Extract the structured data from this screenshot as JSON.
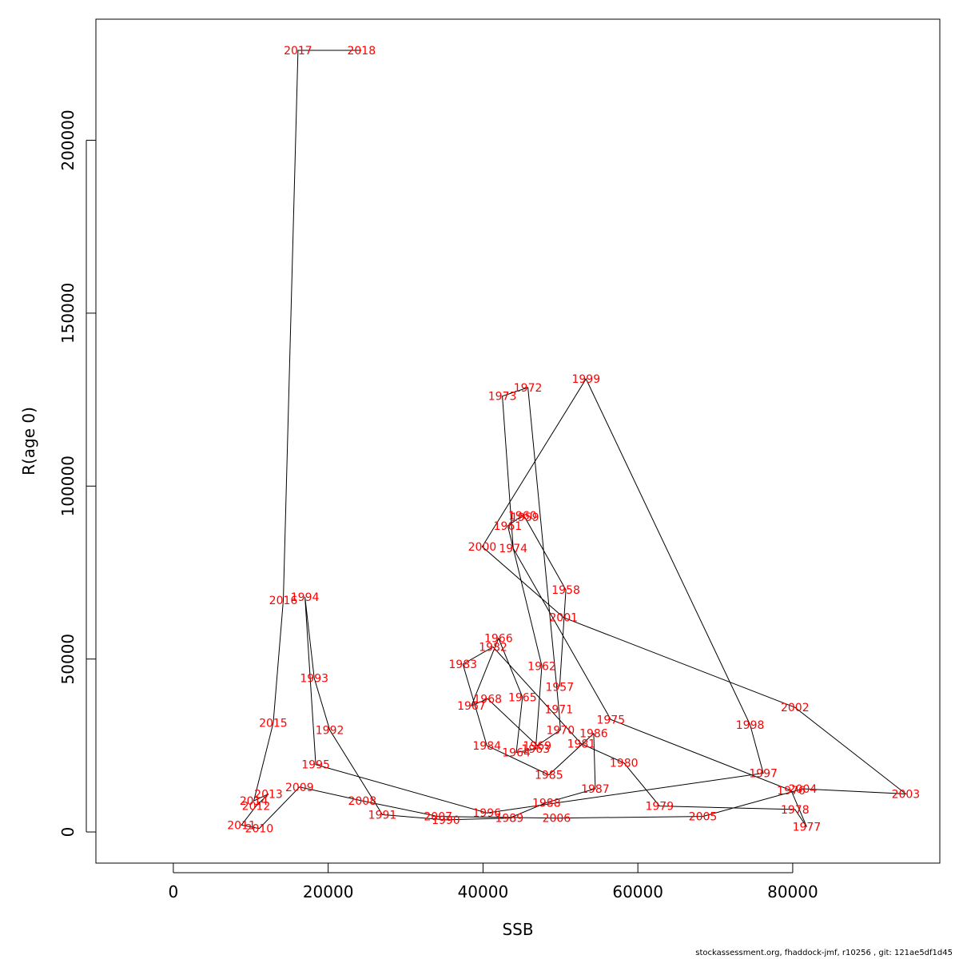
{
  "chart_data": {
    "type": "line",
    "xlabel": "SSB",
    "ylabel": "R(age 0)",
    "xlim": [
      -10000,
      99000
    ],
    "ylim": [
      -9000,
      235000
    ],
    "x_ticks": [
      0,
      20000,
      40000,
      60000,
      80000
    ],
    "x_tick_labels": [
      "0",
      "20000",
      "40000",
      "60000",
      "80000"
    ],
    "y_ticks": [
      0,
      50000,
      100000,
      150000,
      200000
    ],
    "y_tick_labels": [
      "0",
      "50000",
      "100000",
      "150000",
      "200000"
    ],
    "line_color": "#000000",
    "label_color": "#ff0000",
    "points": [
      {
        "year": "1957",
        "x": 49900,
        "y": 42000
      },
      {
        "year": "1958",
        "x": 50700,
        "y": 70000
      },
      {
        "year": "1959",
        "x": 45400,
        "y": 91000
      },
      {
        "year": "1960",
        "x": 45100,
        "y": 91500
      },
      {
        "year": "1961",
        "x": 43200,
        "y": 88500
      },
      {
        "year": "1962",
        "x": 47600,
        "y": 48000
      },
      {
        "year": "1963",
        "x": 46800,
        "y": 24000
      },
      {
        "year": "1964",
        "x": 44300,
        "y": 23000
      },
      {
        "year": "1965",
        "x": 45100,
        "y": 39000
      },
      {
        "year": "1966",
        "x": 42000,
        "y": 56000
      },
      {
        "year": "1967",
        "x": 38500,
        "y": 36500
      },
      {
        "year": "1968",
        "x": 40600,
        "y": 38500
      },
      {
        "year": "1969",
        "x": 47000,
        "y": 25000
      },
      {
        "year": "1970",
        "x": 50000,
        "y": 29500
      },
      {
        "year": "1971",
        "x": 49800,
        "y": 35500
      },
      {
        "year": "1972",
        "x": 45800,
        "y": 128500
      },
      {
        "year": "1973",
        "x": 42500,
        "y": 126000
      },
      {
        "year": "1974",
        "x": 43900,
        "y": 82000
      },
      {
        "year": "1975",
        "x": 56500,
        "y": 32500
      },
      {
        "year": "1976",
        "x": 79800,
        "y": 12000
      },
      {
        "year": "1977",
        "x": 81800,
        "y": 1500
      },
      {
        "year": "1978",
        "x": 80300,
        "y": 6500
      },
      {
        "year": "1979",
        "x": 62800,
        "y": 7500
      },
      {
        "year": "1980",
        "x": 58200,
        "y": 20000
      },
      {
        "year": "1981",
        "x": 52700,
        "y": 25500
      },
      {
        "year": "1982",
        "x": 41300,
        "y": 53500
      },
      {
        "year": "1983",
        "x": 37400,
        "y": 48500
      },
      {
        "year": "1984",
        "x": 40500,
        "y": 25000
      },
      {
        "year": "1985",
        "x": 48500,
        "y": 16500
      },
      {
        "year": "1986",
        "x": 54300,
        "y": 28500
      },
      {
        "year": "1987",
        "x": 54500,
        "y": 12500
      },
      {
        "year": "1988",
        "x": 48200,
        "y": 8500
      },
      {
        "year": "1989",
        "x": 43400,
        "y": 4000
      },
      {
        "year": "1990",
        "x": 35200,
        "y": 3500
      },
      {
        "year": "1991",
        "x": 27000,
        "y": 5000
      },
      {
        "year": "1992",
        "x": 20200,
        "y": 29500
      },
      {
        "year": "1993",
        "x": 18200,
        "y": 44500
      },
      {
        "year": "1994",
        "x": 17000,
        "y": 68000
      },
      {
        "year": "1995",
        "x": 18400,
        "y": 19500
      },
      {
        "year": "1996",
        "x": 40500,
        "y": 5500
      },
      {
        "year": "1997",
        "x": 76200,
        "y": 17000
      },
      {
        "year": "1998",
        "x": 74500,
        "y": 31000
      },
      {
        "year": "1999",
        "x": 53300,
        "y": 131000
      },
      {
        "year": "2000",
        "x": 39900,
        "y": 82500
      },
      {
        "year": "2001",
        "x": 50400,
        "y": 62000
      },
      {
        "year": "2002",
        "x": 80300,
        "y": 36000
      },
      {
        "year": "2003",
        "x": 94600,
        "y": 11000
      },
      {
        "year": "2004",
        "x": 81300,
        "y": 12500
      },
      {
        "year": "2005",
        "x": 68400,
        "y": 4500
      },
      {
        "year": "2006",
        "x": 49500,
        "y": 4000
      },
      {
        "year": "2007",
        "x": 34200,
        "y": 4500
      },
      {
        "year": "2008",
        "x": 24400,
        "y": 9000
      },
      {
        "year": "2009",
        "x": 16300,
        "y": 13000
      },
      {
        "year": "2010",
        "x": 11100,
        "y": 1000
      },
      {
        "year": "2011",
        "x": 8800,
        "y": 2000
      },
      {
        "year": "2012",
        "x": 10700,
        "y": 7500
      },
      {
        "year": "2013",
        "x": 12300,
        "y": 11000
      },
      {
        "year": "2014",
        "x": 10400,
        "y": 9000
      },
      {
        "year": "2015",
        "x": 12900,
        "y": 31500
      },
      {
        "year": "2016",
        "x": 14200,
        "y": 67000
      },
      {
        "year": "2017",
        "x": 16100,
        "y": 226000
      },
      {
        "year": "2018",
        "x": 24300,
        "y": 226000
      }
    ]
  },
  "footer": "stockassessment.org, fhaddock-jmf, r10256 , git: 121ae5df1d45"
}
